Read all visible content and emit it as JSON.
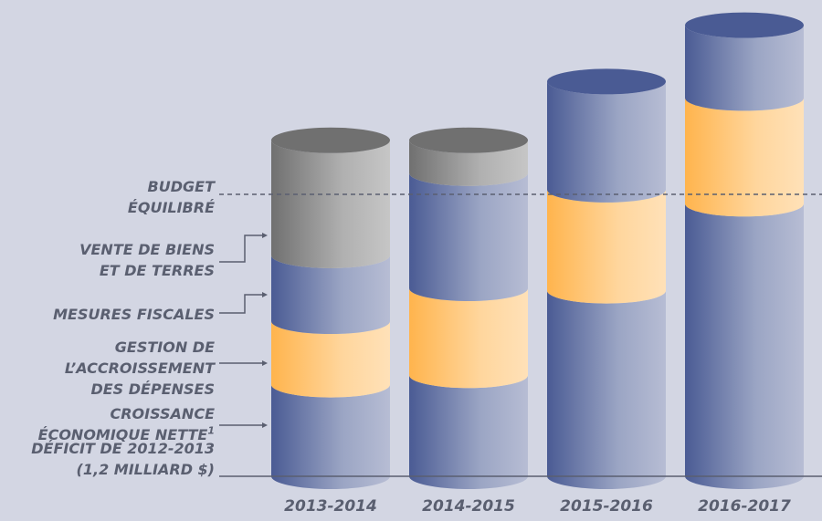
{
  "chart_data": {
    "type": "stacked_cylinder",
    "categories": [
      "2013-2014",
      "2014-2015",
      "2015-2016",
      "2016-2017"
    ],
    "series": [
      {
        "name": "CROISSANCE\nÉCONOMIQUE NETTE",
        "footnote": "1",
        "color": "#4a5b94",
        "values": [
          0.39,
          0.43,
          0.79,
          1.16
        ]
      },
      {
        "name": "GESTION DE\nL’ACCROISSEMENT\nDES DÉPENSES",
        "color": "#ffb44d",
        "values": [
          0.27,
          0.37,
          0.43,
          0.45
        ]
      },
      {
        "name": "MESURES FISCALES",
        "color": "#4a5b94",
        "values": [
          0.28,
          0.49,
          0.46,
          0.31
        ]
      },
      {
        "name": "VENTE DE BIENS\nET DE TERRES",
        "color": "#707070",
        "values": [
          0.49,
          0.14,
          null,
          null
        ]
      }
    ],
    "baseline_label": "DÉFICIT DE 2012-2013\n(1,2 MILLIARD $)",
    "reference_line": {
      "label": "BUDGET\nÉQUILIBRÉ",
      "value": 1.2
    },
    "ylim": [
      0,
      2.0
    ]
  }
}
